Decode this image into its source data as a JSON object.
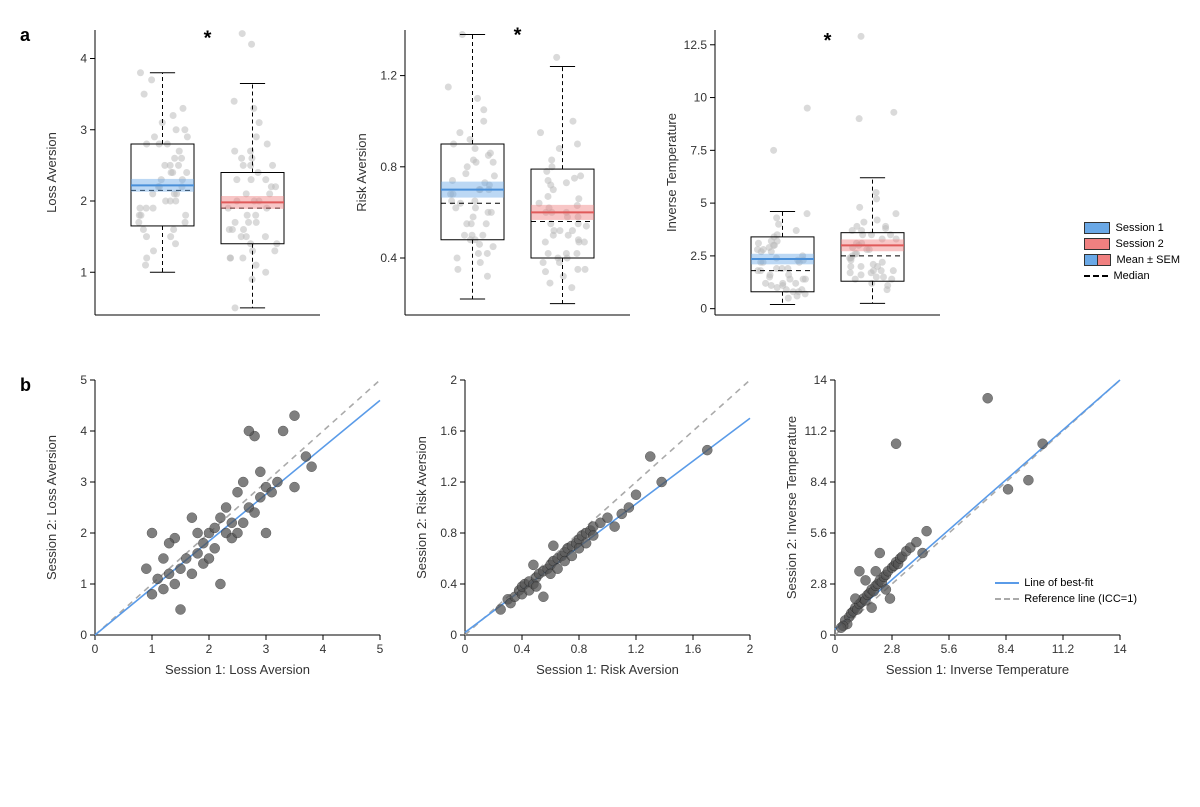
{
  "colors": {
    "blue": "#6aa8e6",
    "blue_line": "#4a90d9",
    "red": "#f08080",
    "red_line": "#e05a5a",
    "jitter": "#bbbbbb",
    "scatter": "#555555",
    "fit": "#5a9be8",
    "ref": "#aaaaaa"
  },
  "panel_a": {
    "label": "a",
    "legend": {
      "session1": "Session 1",
      "session2": "Session 2",
      "mean_sem": "Mean ± SEM",
      "median": "Median"
    },
    "plots": [
      {
        "ylabel": "Loss Aversion",
        "ylim": [
          0.4,
          4.4
        ],
        "yticks": [
          1,
          2,
          3,
          4
        ],
        "star_y": 4.2,
        "boxes": [
          {
            "q1": 1.65,
            "q3": 2.8,
            "median": 2.15,
            "mean": 2.22,
            "sem": 0.09,
            "wlo": 1.0,
            "whi": 3.8,
            "color": "blue"
          },
          {
            "q1": 1.4,
            "q3": 2.4,
            "median": 1.9,
            "mean": 1.98,
            "sem": 0.09,
            "wlo": 0.5,
            "whi": 3.65,
            "color": "red"
          }
        ],
        "jitter": [
          [
            2.2,
            2.5,
            1.8,
            3.0,
            2.0,
            1.6,
            2.8,
            1.9,
            2.4,
            2.1,
            3.2,
            1.3,
            2.6,
            1.7,
            2.9,
            2.3,
            1.5,
            3.5,
            2.0,
            2.7,
            1.1,
            2.2,
            1.9,
            3.1,
            2.4,
            1.8,
            2.5,
            1.4,
            2.8,
            2.1,
            1.6,
            3.3,
            2.3,
            1.9,
            2.6,
            1.2,
            2.9,
            2.0,
            3.7,
            1.7,
            2.4,
            2.8,
            1.5,
            3.0,
            2.1,
            2.5,
            1.8,
            3.8,
            2.2
          ],
          [
            1.9,
            2.2,
            1.5,
            2.6,
            1.7,
            1.3,
            2.4,
            1.6,
            2.0,
            1.8,
            2.8,
            1.1,
            2.3,
            1.4,
            2.5,
            2.0,
            1.2,
            3.1,
            1.7,
            2.3,
            0.9,
            1.9,
            1.6,
            2.7,
            2.1,
            1.5,
            2.2,
            1.2,
            2.5,
            1.8,
            1.3,
            2.9,
            2.0,
            1.6,
            2.3,
            1.0,
            2.6,
            1.7,
            3.3,
            1.4,
            2.1,
            2.5,
            1.2,
            2.7,
            4.35,
            4.2,
            1.5,
            3.4,
            0.5
          ]
        ]
      },
      {
        "ylabel": "Risk Aversion",
        "ylim": [
          0.15,
          1.4
        ],
        "yticks": [
          0.4,
          0.8,
          1.2
        ],
        "star_y": 1.35,
        "boxes": [
          {
            "q1": 0.48,
            "q3": 0.9,
            "median": 0.64,
            "mean": 0.7,
            "sem": 0.035,
            "wlo": 0.22,
            "whi": 1.38,
            "color": "blue"
          },
          {
            "q1": 0.4,
            "q3": 0.79,
            "median": 0.56,
            "mean": 0.6,
            "sem": 0.033,
            "wlo": 0.2,
            "whi": 1.24,
            "color": "red"
          }
        ],
        "jitter": [
          [
            0.65,
            0.72,
            0.5,
            0.88,
            0.6,
            0.45,
            0.82,
            0.55,
            0.7,
            0.62,
            0.95,
            0.38,
            0.76,
            0.48,
            0.85,
            0.68,
            0.42,
            1.05,
            0.58,
            0.8,
            0.32,
            0.65,
            0.55,
            0.92,
            0.7,
            0.5,
            0.74,
            0.4,
            0.83,
            0.62,
            0.46,
            1.0,
            0.68,
            0.55,
            0.77,
            0.35,
            0.86,
            0.6,
            1.15,
            0.48,
            0.7,
            0.82,
            0.42,
            0.9,
            1.38,
            0.73,
            0.5,
            1.1,
            0.64
          ],
          [
            0.55,
            0.62,
            0.42,
            0.76,
            0.5,
            0.38,
            0.72,
            0.47,
            0.6,
            0.52,
            0.83,
            0.32,
            0.66,
            0.4,
            0.74,
            0.58,
            0.35,
            0.9,
            0.48,
            0.7,
            0.27,
            0.55,
            0.47,
            0.8,
            0.6,
            0.42,
            0.64,
            0.34,
            0.73,
            0.52,
            0.38,
            0.88,
            0.58,
            0.47,
            0.67,
            0.29,
            0.75,
            0.5,
            1.0,
            0.4,
            0.6,
            1.28,
            0.35,
            0.78,
            0.52,
            0.63,
            0.42,
            0.95,
            0.54
          ]
        ]
      },
      {
        "ylabel": "Inverse Temperature",
        "ylim": [
          -0.3,
          13.2
        ],
        "yticks": [
          0,
          2.5,
          5,
          7.5,
          10,
          12.5
        ],
        "star_y": 12.4,
        "boxes": [
          {
            "q1": 0.8,
            "q3": 3.4,
            "median": 1.8,
            "mean": 2.35,
            "sem": 0.25,
            "wlo": 0.2,
            "whi": 4.6,
            "color": "blue"
          },
          {
            "q1": 1.3,
            "q3": 3.6,
            "median": 2.5,
            "mean": 3.0,
            "sem": 0.28,
            "wlo": 0.25,
            "whi": 6.2,
            "color": "red"
          }
        ],
        "jitter": [
          [
            1.9,
            2.5,
            1.2,
            3.2,
            1.6,
            0.9,
            2.9,
            1.4,
            2.2,
            7.5,
            3.5,
            0.7,
            2.7,
            1.1,
            3.0,
            2.3,
            0.8,
            4.0,
            1.5,
            2.8,
            0.5,
            1.9,
            1.4,
            3.4,
            2.2,
            1.2,
            9.5,
            1.0,
            3.0,
            1.8,
            0.9,
            3.7,
            2.3,
            1.4,
            2.7,
            0.6,
            3.1,
            1.6,
            4.3,
            1.1,
            2.2,
            2.8,
            0.8,
            3.2,
            1.8,
            2.4,
            1.2,
            4.5,
            1.9
          ],
          [
            2.6,
            3.1,
            1.8,
            3.9,
            2.3,
            1.5,
            3.5,
            2.0,
            2.8,
            9.0,
            4.2,
            1.2,
            3.3,
            1.7,
            3.7,
            9.3,
            1.4,
            4.8,
            2.1,
            3.5,
            0.9,
            2.6,
            2.0,
            4.1,
            12.9,
            1.8,
            3.1,
            1.6,
            3.7,
            2.4,
            1.5,
            4.5,
            2.9,
            2.0,
            3.3,
            1.1,
            3.8,
            2.2,
            5.2,
            1.7,
            2.8,
            3.5,
            1.4,
            3.9,
            2.4,
            3.0,
            1.8,
            5.5,
            2.5
          ]
        ]
      }
    ]
  },
  "panel_b": {
    "label": "b",
    "legend": {
      "fit": "Line of best-fit",
      "ref": "Reference line (ICC=1)"
    },
    "plots": [
      {
        "xlabel": "Session 1: Loss Aversion",
        "ylabel": "Session 2: Loss Aversion",
        "xlim": [
          0,
          5
        ],
        "ylim": [
          0,
          5
        ],
        "xticks": [
          0,
          1,
          2,
          3,
          4,
          5
        ],
        "yticks": [
          0,
          1,
          2,
          3,
          4,
          5
        ],
        "fit_slope": 0.92,
        "fit_intercept": 0,
        "points": [
          [
            1.0,
            0.8
          ],
          [
            1.1,
            1.1
          ],
          [
            1.2,
            0.9
          ],
          [
            1.2,
            1.5
          ],
          [
            1.3,
            1.2
          ],
          [
            1.4,
            1.0
          ],
          [
            1.4,
            1.9
          ],
          [
            1.5,
            1.3
          ],
          [
            1.5,
            0.5
          ],
          [
            1.6,
            1.5
          ],
          [
            1.7,
            1.2
          ],
          [
            1.7,
            2.3
          ],
          [
            1.8,
            1.6
          ],
          [
            1.8,
            2.0
          ],
          [
            1.9,
            1.4
          ],
          [
            1.9,
            1.8
          ],
          [
            2.0,
            2.0
          ],
          [
            2.0,
            1.5
          ],
          [
            2.1,
            2.1
          ],
          [
            2.1,
            1.7
          ],
          [
            2.2,
            2.3
          ],
          [
            2.2,
            1.0
          ],
          [
            2.3,
            2.0
          ],
          [
            2.3,
            2.5
          ],
          [
            2.4,
            1.9
          ],
          [
            2.4,
            2.2
          ],
          [
            2.5,
            2.0
          ],
          [
            2.5,
            2.8
          ],
          [
            2.6,
            2.2
          ],
          [
            2.6,
            3.0
          ],
          [
            2.7,
            2.5
          ],
          [
            2.8,
            2.4
          ],
          [
            2.8,
            3.9
          ],
          [
            2.9,
            2.7
          ],
          [
            2.9,
            3.2
          ],
          [
            3.0,
            2.0
          ],
          [
            3.0,
            2.9
          ],
          [
            3.1,
            2.8
          ],
          [
            3.2,
            3.0
          ],
          [
            3.3,
            4.0
          ],
          [
            3.5,
            2.9
          ],
          [
            3.5,
            4.3
          ],
          [
            3.7,
            3.5
          ],
          [
            3.8,
            3.3
          ],
          [
            1.0,
            2.0
          ],
          [
            0.9,
            1.3
          ],
          [
            2.7,
            4.0
          ],
          [
            1.3,
            1.8
          ]
        ]
      },
      {
        "xlabel": "Session 1: Risk Aversion",
        "ylabel": "Session 2: Risk Aversion",
        "xlim": [
          0,
          2
        ],
        "ylim": [
          0,
          2
        ],
        "xticks": [
          0,
          0.4,
          0.8,
          1.2,
          1.6,
          2
        ],
        "yticks": [
          0,
          0.4,
          0.8,
          1.2,
          1.6,
          2
        ],
        "fit_slope": 0.84,
        "fit_intercept": 0.02,
        "points": [
          [
            0.25,
            0.2
          ],
          [
            0.3,
            0.28
          ],
          [
            0.32,
            0.25
          ],
          [
            0.35,
            0.3
          ],
          [
            0.38,
            0.35
          ],
          [
            0.4,
            0.32
          ],
          [
            0.4,
            0.38
          ],
          [
            0.42,
            0.4
          ],
          [
            0.45,
            0.35
          ],
          [
            0.45,
            0.42
          ],
          [
            0.48,
            0.4
          ],
          [
            0.5,
            0.45
          ],
          [
            0.5,
            0.38
          ],
          [
            0.52,
            0.48
          ],
          [
            0.55,
            0.3
          ],
          [
            0.55,
            0.5
          ],
          [
            0.58,
            0.52
          ],
          [
            0.6,
            0.55
          ],
          [
            0.6,
            0.48
          ],
          [
            0.62,
            0.58
          ],
          [
            0.65,
            0.6
          ],
          [
            0.65,
            0.52
          ],
          [
            0.68,
            0.62
          ],
          [
            0.7,
            0.65
          ],
          [
            0.7,
            0.58
          ],
          [
            0.72,
            0.68
          ],
          [
            0.75,
            0.7
          ],
          [
            0.75,
            0.62
          ],
          [
            0.78,
            0.72
          ],
          [
            0.8,
            0.75
          ],
          [
            0.8,
            0.68
          ],
          [
            0.82,
            0.78
          ],
          [
            0.85,
            0.8
          ],
          [
            0.85,
            0.72
          ],
          [
            0.88,
            0.82
          ],
          [
            0.9,
            0.85
          ],
          [
            0.9,
            0.78
          ],
          [
            0.95,
            0.88
          ],
          [
            1.0,
            0.92
          ],
          [
            1.05,
            0.85
          ],
          [
            1.1,
            0.95
          ],
          [
            1.15,
            1.0
          ],
          [
            1.2,
            1.1
          ],
          [
            1.3,
            1.4
          ],
          [
            1.38,
            1.2
          ],
          [
            1.7,
            1.45
          ],
          [
            0.48,
            0.55
          ],
          [
            0.62,
            0.7
          ]
        ]
      },
      {
        "xlabel": "Session 1: Inverse Temperature",
        "ylabel": "Session 2: Inverse Temperature",
        "xlim": [
          0,
          14
        ],
        "ylim": [
          0,
          14
        ],
        "xticks": [
          0,
          2.8,
          5.6,
          8.4,
          11.2,
          14
        ],
        "yticks": [
          0,
          2.8,
          5.6,
          8.4,
          11.2,
          14
        ],
        "fit_slope": 1.05,
        "fit_intercept": 0.3,
        "points": [
          [
            0.5,
            0.8
          ],
          [
            0.7,
            1.0
          ],
          [
            0.8,
            1.2
          ],
          [
            0.9,
            1.3
          ],
          [
            1.0,
            1.5
          ],
          [
            1.1,
            1.4
          ],
          [
            1.2,
            1.7
          ],
          [
            1.3,
            1.8
          ],
          [
            1.4,
            2.0
          ],
          [
            1.5,
            1.9
          ],
          [
            1.6,
            2.2
          ],
          [
            1.7,
            2.3
          ],
          [
            1.8,
            2.5
          ],
          [
            1.9,
            2.4
          ],
          [
            2.0,
            2.7
          ],
          [
            2.1,
            2.8
          ],
          [
            2.2,
            3.0
          ],
          [
            2.3,
            2.9
          ],
          [
            2.4,
            3.2
          ],
          [
            2.5,
            3.3
          ],
          [
            2.6,
            3.5
          ],
          [
            2.7,
            2.0
          ],
          [
            2.8,
            3.7
          ],
          [
            2.9,
            3.8
          ],
          [
            3.0,
            4.0
          ],
          [
            3.1,
            3.9
          ],
          [
            3.2,
            4.2
          ],
          [
            3.3,
            4.3
          ],
          [
            3.5,
            4.6
          ],
          [
            3.7,
            4.8
          ],
          [
            4.0,
            5.1
          ],
          [
            4.3,
            4.5
          ],
          [
            4.5,
            5.7
          ],
          [
            7.5,
            13.0
          ],
          [
            9.5,
            8.5
          ],
          [
            1.5,
            3.0
          ],
          [
            2.0,
            3.5
          ],
          [
            1.0,
            2.0
          ],
          [
            0.6,
            0.6
          ],
          [
            0.4,
            0.5
          ],
          [
            1.8,
            1.5
          ],
          [
            2.5,
            2.5
          ],
          [
            8.5,
            8.0
          ],
          [
            10.2,
            10.5
          ],
          [
            3.0,
            10.5
          ],
          [
            1.2,
            3.5
          ],
          [
            2.2,
            4.5
          ],
          [
            0.3,
            0.4
          ]
        ]
      }
    ]
  }
}
